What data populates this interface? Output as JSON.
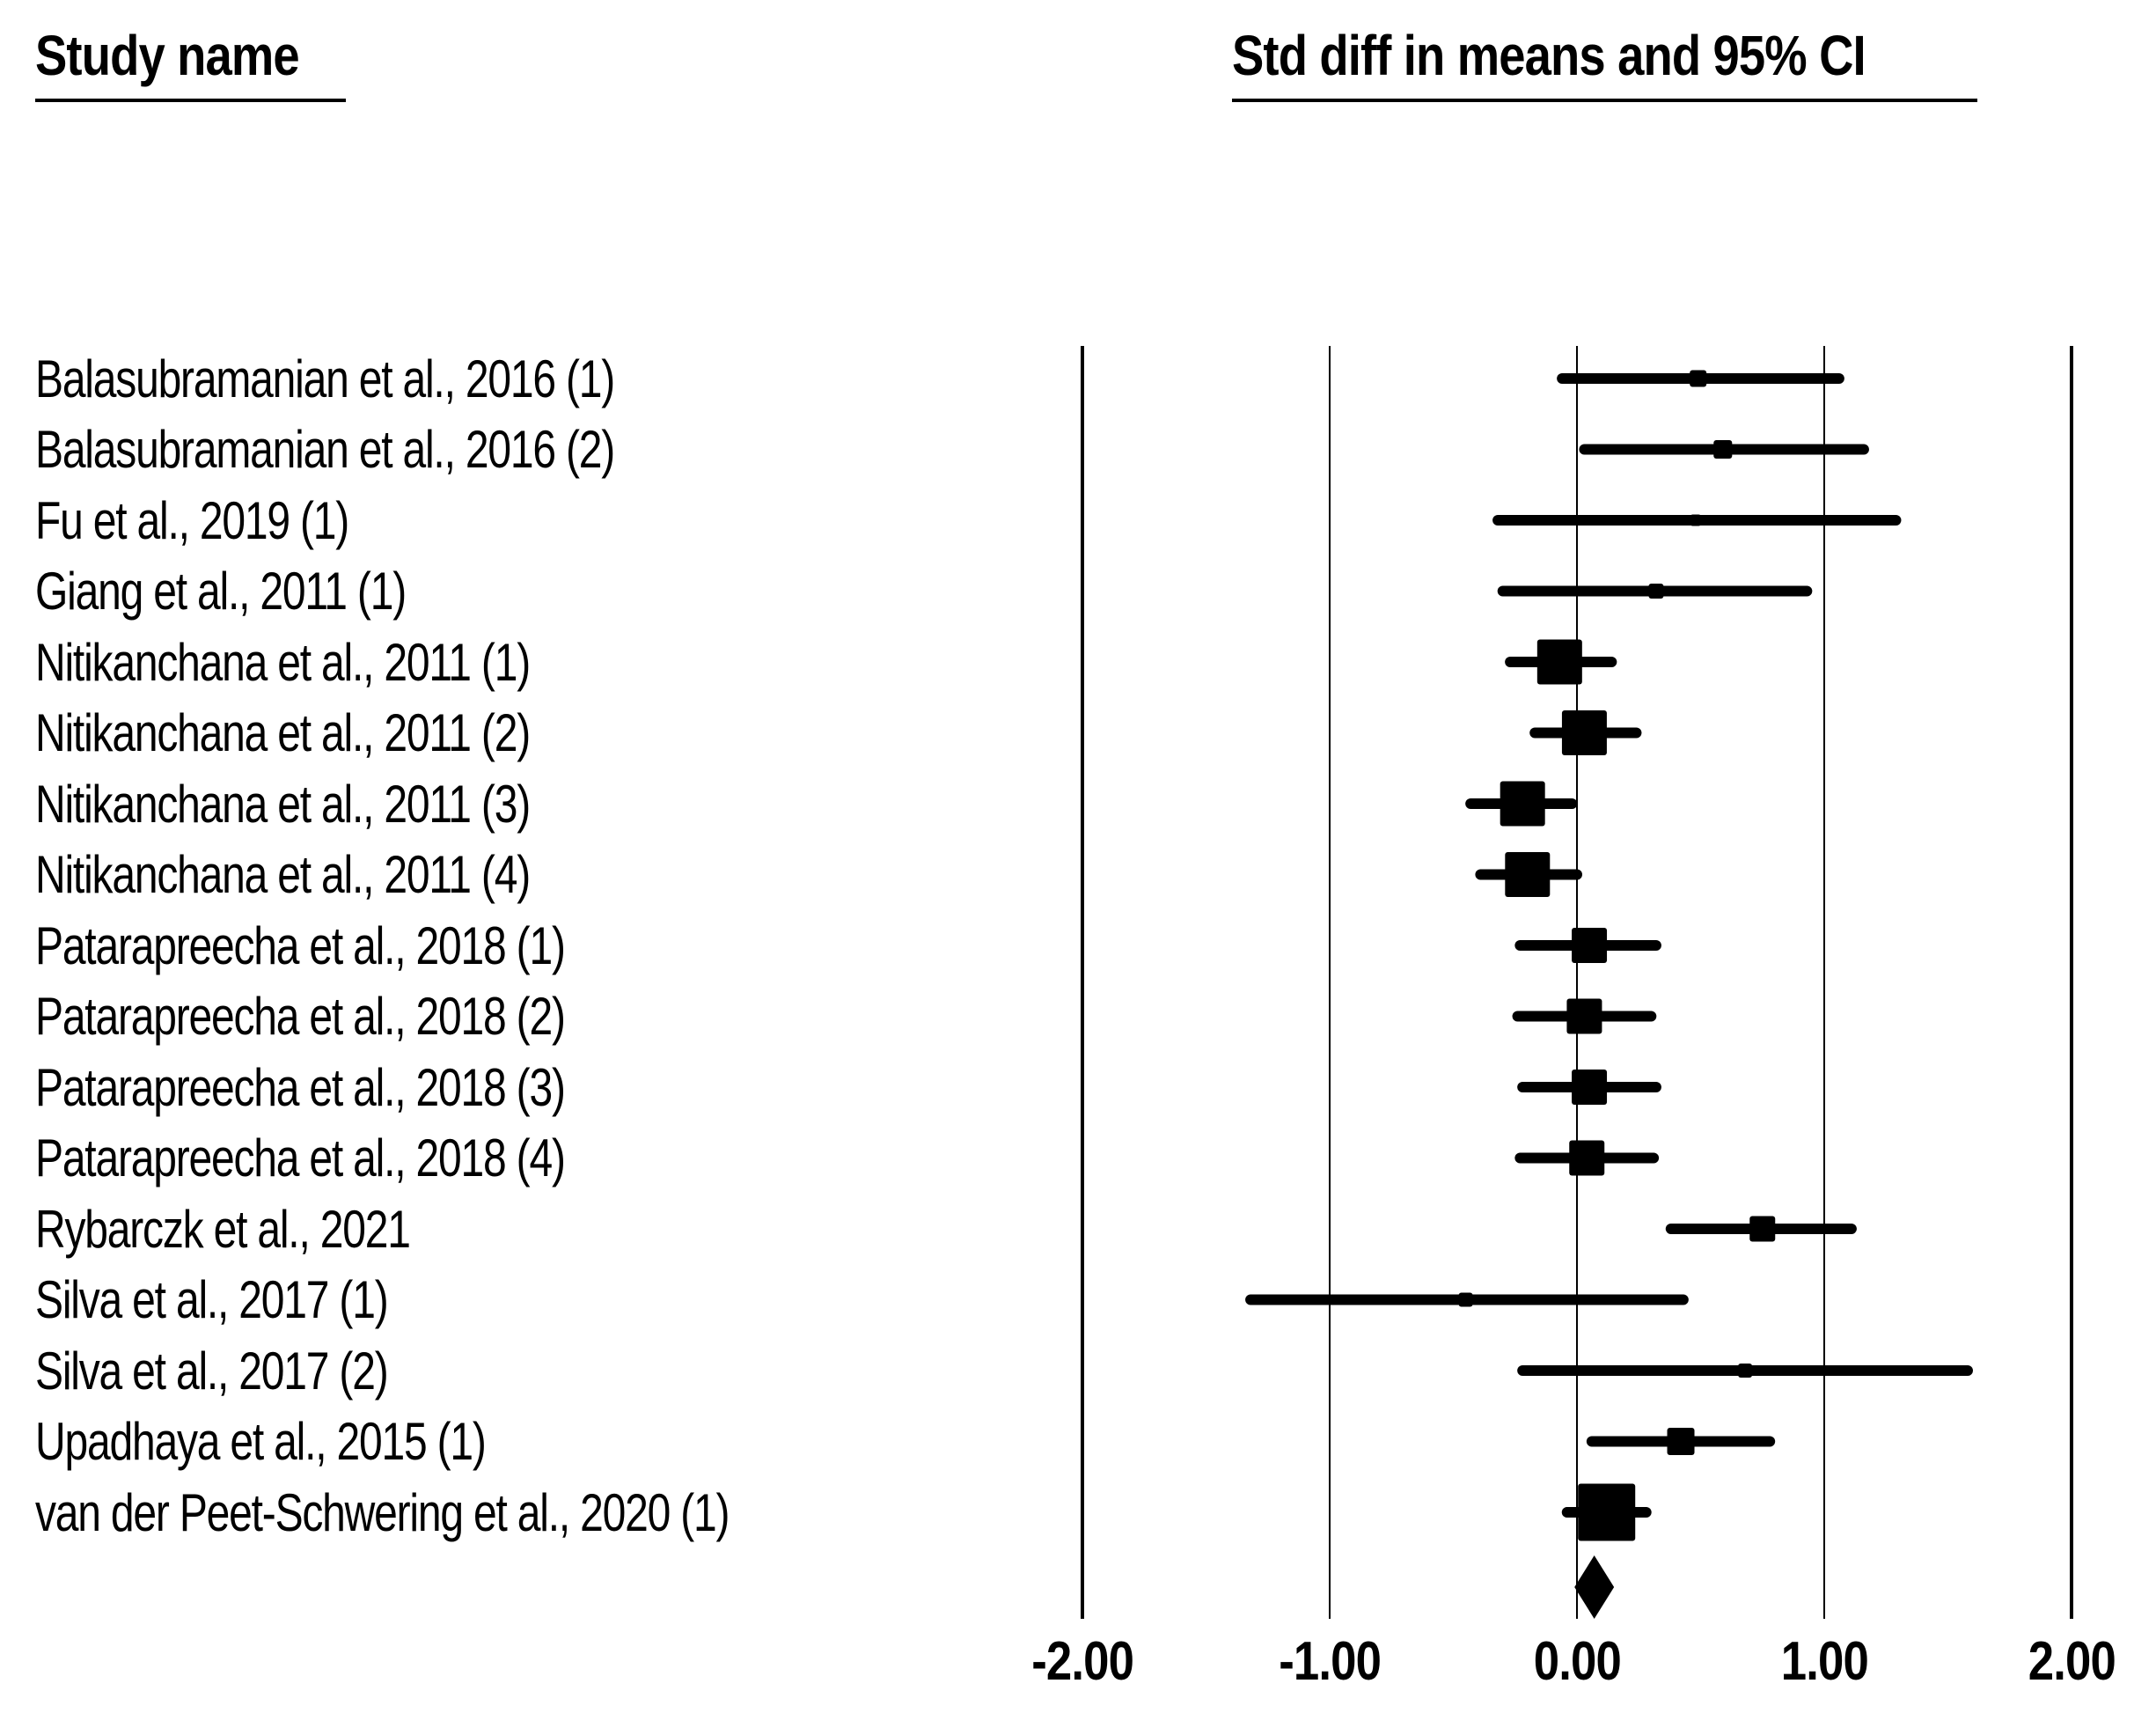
{
  "headers": {
    "left": "Study name",
    "right": "Std diff in means and 95% CI"
  },
  "chart_data": {
    "type": "forest",
    "title": "",
    "xlabel": "Std diff in means",
    "axis": {
      "ticks": [
        -2,
        -1,
        0,
        1,
        2
      ],
      "tick_labels": [
        "-2.00",
        "-1.00",
        "0.00",
        "1.00",
        "2.00"
      ],
      "xlim": [
        -2.3,
        2.35
      ],
      "grid": "vertical"
    },
    "legend_position": "none",
    "marker_color": "#000000",
    "studies": [
      {
        "name": "Balasubramanian et al., 2016 (1)",
        "mean": 0.49,
        "ci_low": -0.06,
        "ci_high": 1.06,
        "square": 19
      },
      {
        "name": "Balasubramanian et al., 2016 (2)",
        "mean": 0.59,
        "ci_low": 0.03,
        "ci_high": 1.16,
        "square": 21
      },
      {
        "name": "Fu et al., 2019 (1)",
        "mean": 0.48,
        "ci_low": -0.32,
        "ci_high": 1.29,
        "square": 13
      },
      {
        "name": "Giang et al., 2011 (1)",
        "mean": 0.32,
        "ci_low": -0.3,
        "ci_high": 0.93,
        "square": 17
      },
      {
        "name": "Nitikanchana et al., 2011 (1)",
        "mean": -0.07,
        "ci_low": -0.27,
        "ci_high": 0.14,
        "square": 51
      },
      {
        "name": "Nitikanchana et al., 2011 (2)",
        "mean": 0.03,
        "ci_low": -0.17,
        "ci_high": 0.24,
        "square": 51
      },
      {
        "name": "Nitikanchana et al., 2011 (3)",
        "mean": -0.22,
        "ci_low": -0.43,
        "ci_high": -0.02,
        "square": 51
      },
      {
        "name": "Nitikanchana et al., 2011 (4)",
        "mean": -0.2,
        "ci_low": -0.39,
        "ci_high": 0.0,
        "square": 51
      },
      {
        "name": "Patarapreecha et al., 2018 (1)",
        "mean": 0.05,
        "ci_low": -0.23,
        "ci_high": 0.32,
        "square": 40
      },
      {
        "name": "Patarapreecha et al., 2018 (2)",
        "mean": 0.03,
        "ci_low": -0.24,
        "ci_high": 0.3,
        "square": 40
      },
      {
        "name": "Patarapreecha et al., 2018 (3)",
        "mean": 0.05,
        "ci_low": -0.22,
        "ci_high": 0.32,
        "square": 40
      },
      {
        "name": "Patarapreecha et al., 2018 (4)",
        "mean": 0.04,
        "ci_low": -0.23,
        "ci_high": 0.31,
        "square": 40
      },
      {
        "name": "Rybarczk et al., 2021",
        "mean": 0.75,
        "ci_low": 0.38,
        "ci_high": 1.11,
        "square": 29
      },
      {
        "name": "Silva et al., 2017 (1)",
        "mean": -0.45,
        "ci_low": -1.32,
        "ci_high": 0.43,
        "square": 16
      },
      {
        "name": "Silva et al., 2017 (2)",
        "mean": 0.68,
        "ci_low": -0.22,
        "ci_high": 1.58,
        "square": 16
      },
      {
        "name": "Upadhaya et al., 2015 (1)",
        "mean": 0.42,
        "ci_low": 0.06,
        "ci_high": 0.78,
        "square": 31
      },
      {
        "name": "van der Peet-Schwering et al., 2020 (1)",
        "mean": 0.12,
        "ci_low": -0.04,
        "ci_high": 0.28,
        "square": 65
      }
    ],
    "overall": {
      "mean": 0.07,
      "ci_low": -0.01,
      "ci_high": 0.15
    }
  }
}
